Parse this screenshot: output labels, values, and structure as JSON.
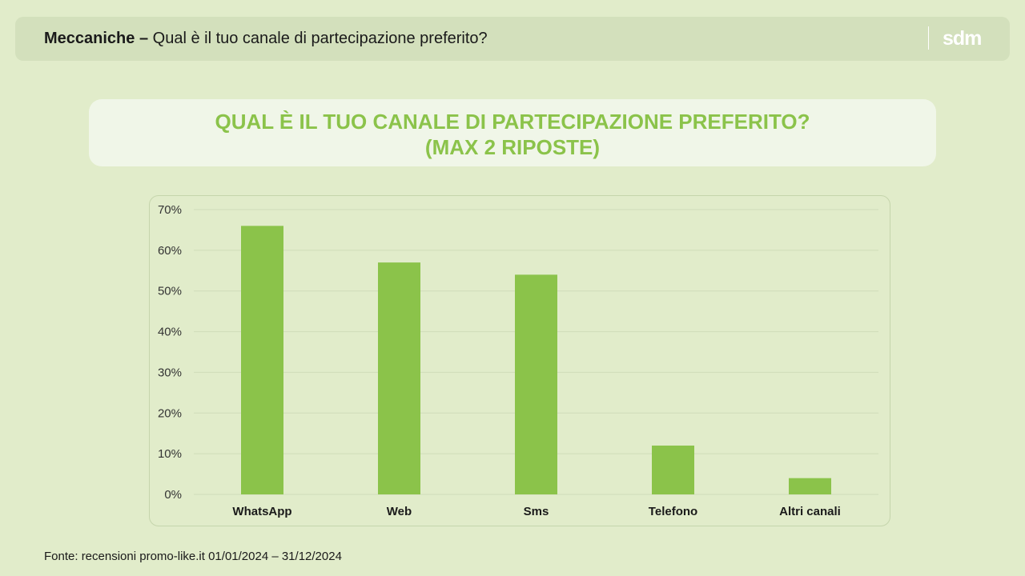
{
  "header": {
    "title_bold": "Meccaniche –",
    "title_rest": "Qual è il tuo canale di partecipazione preferito?",
    "logo_text": "sdm"
  },
  "title_box": {
    "line1": "QUAL È IL TUO CANALE DI PARTECIPAZIONE PREFERITO?",
    "line2": "(MAX 2 RIPOSTE)"
  },
  "colors": {
    "background": "#e1ecca",
    "bar": "#8bc34a",
    "title": "#8bc34a",
    "grid": "#cfdcb9"
  },
  "chart_data": {
    "type": "bar",
    "categories": [
      "WhatsApp",
      "Web",
      "Sms",
      "Telefono",
      "Altri canali"
    ],
    "values": [
      66,
      57,
      54,
      12,
      4
    ],
    "ylim": [
      0,
      70
    ],
    "yticks": [
      "0%",
      "10%",
      "20%",
      "30%",
      "40%",
      "50%",
      "60%",
      "70%"
    ],
    "grid": true,
    "legend": "none"
  },
  "footer": {
    "source": "Fonte: recensioni promo-like.it 01/01/2024 – 31/12/2024"
  }
}
